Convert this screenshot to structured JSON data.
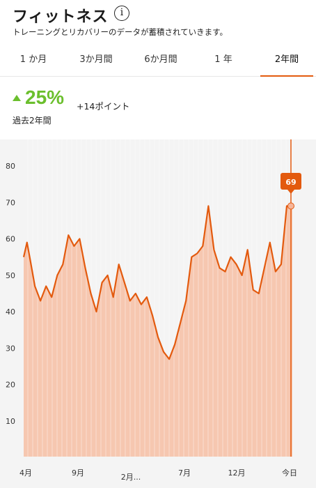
{
  "header": {
    "title": "フィットネス",
    "info_icon": "info-icon",
    "subtitle": "トレーニングとリカバリーのデータが蓄積されていきます。"
  },
  "tabs": [
    {
      "label": "1 か月"
    },
    {
      "label": "3か月間"
    },
    {
      "label": "6か月間"
    },
    {
      "label": "1 年"
    },
    {
      "label": "2年間",
      "active": true
    }
  ],
  "summary": {
    "change_percent": "25%",
    "change_points": "+14ポイント",
    "period_label": "過去2年間",
    "trend_icon": "up-arrow-icon"
  },
  "colors": {
    "accent": "#e35a0e",
    "fill": "#f6c7b0",
    "positive": "#6bbf2d"
  },
  "chart_data": {
    "type": "area",
    "ylim": [
      0,
      85
    ],
    "yticks": [
      "80",
      "70",
      "60",
      "50",
      "40",
      "30",
      "20",
      "10"
    ],
    "xticks": [
      "4月",
      "9月",
      "2月...",
      "7月",
      "12月",
      "今日"
    ],
    "current_value_label": "69",
    "series": [
      {
        "x": [
          0,
          0.3,
          0.6,
          1,
          1.5,
          2,
          2.5,
          3,
          3.5,
          4,
          4.5,
          5,
          5.5,
          6,
          6.5,
          7,
          7.5,
          8,
          8.5,
          9,
          9.5,
          10,
          10.5,
          11,
          11.5,
          12,
          12.5,
          13,
          13.5,
          14,
          14.5,
          15,
          15.5,
          16,
          16.5,
          17,
          17.5,
          18,
          18.5,
          19,
          19.5,
          20,
          20.5,
          21,
          21.5,
          22,
          22.5,
          23,
          23.5,
          24
        ],
        "values": [
          55,
          59,
          54,
          47,
          43,
          47,
          44,
          50,
          53,
          61,
          58,
          60,
          52,
          45,
          40,
          48,
          50,
          44,
          53,
          48,
          43,
          45,
          42,
          44,
          39,
          33,
          29,
          27,
          31,
          37,
          43,
          55,
          56,
          58,
          69,
          57,
          52,
          51,
          55,
          53,
          50,
          57,
          46,
          45,
          52,
          59,
          51,
          53,
          69,
          69
        ]
      }
    ]
  }
}
